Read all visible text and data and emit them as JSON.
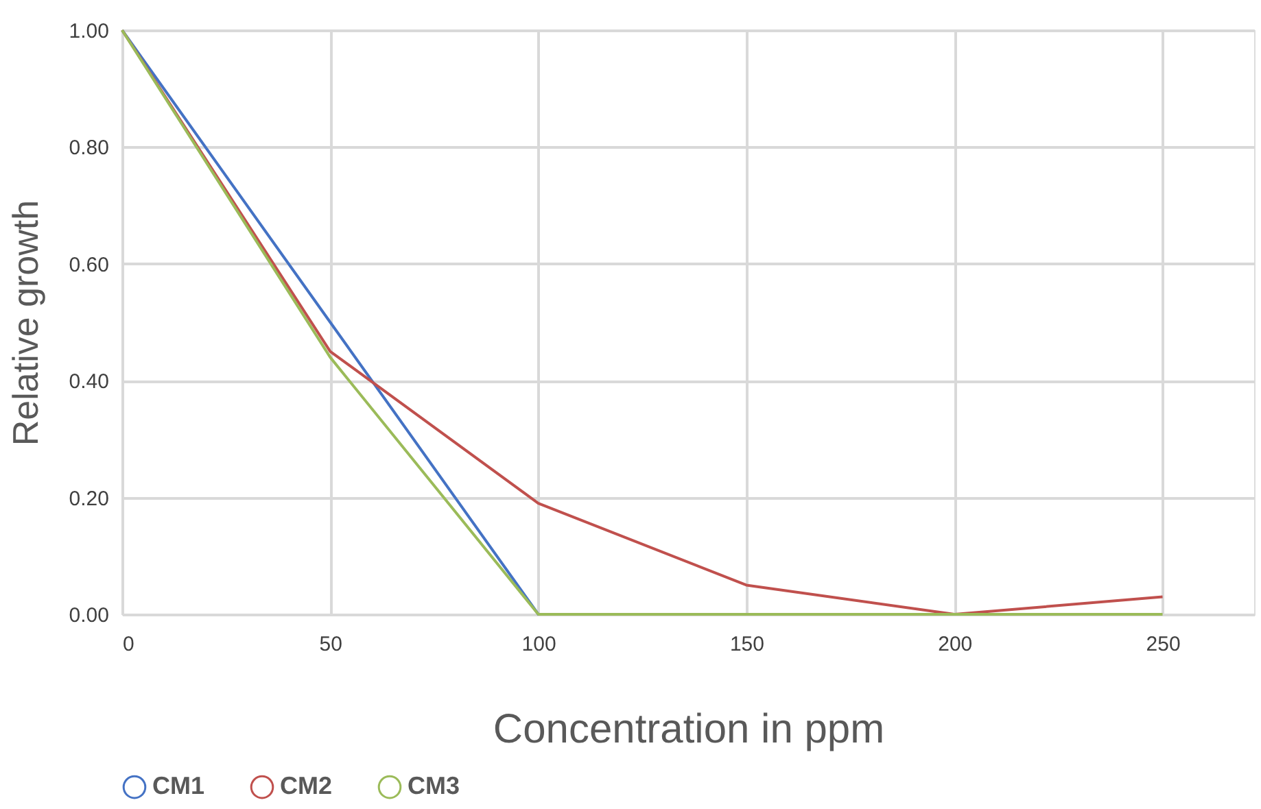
{
  "chart_data": {
    "type": "line",
    "xlabel": "Concentration in ppm",
    "ylabel": "Relative growth",
    "x": [
      0,
      50,
      100,
      150,
      200,
      250
    ],
    "series": [
      {
        "name": "CM1",
        "color": "#4472c4",
        "values": [
          1.0,
          0.5,
          0,
          0,
          null,
          null
        ]
      },
      {
        "name": "CM2",
        "color": "#c0504d",
        "values": [
          1.0,
          0.45,
          0.19,
          0.05,
          0,
          0.03
        ]
      },
      {
        "name": "CM3",
        "color": "#9bbb59",
        "values": [
          1.0,
          0.44,
          0,
          0,
          0,
          0
        ]
      }
    ],
    "xlim": [
      0,
      272
    ],
    "xticks": [
      0,
      50,
      100,
      150,
      200,
      250
    ],
    "ylim": [
      0,
      1.0
    ],
    "yticks": [
      {
        "value": 0,
        "label": "0.00"
      },
      {
        "value": 0.2,
        "label": "0.20"
      },
      {
        "value": 0.4,
        "label": "0.40"
      },
      {
        "value": 0.6,
        "label": "0.60"
      },
      {
        "value": 0.8,
        "label": "0.80"
      },
      {
        "value": 1.0,
        "label": "1.00"
      }
    ],
    "grid": true,
    "legend": "bottom",
    "marker": "none",
    "line_style": "solid"
  }
}
